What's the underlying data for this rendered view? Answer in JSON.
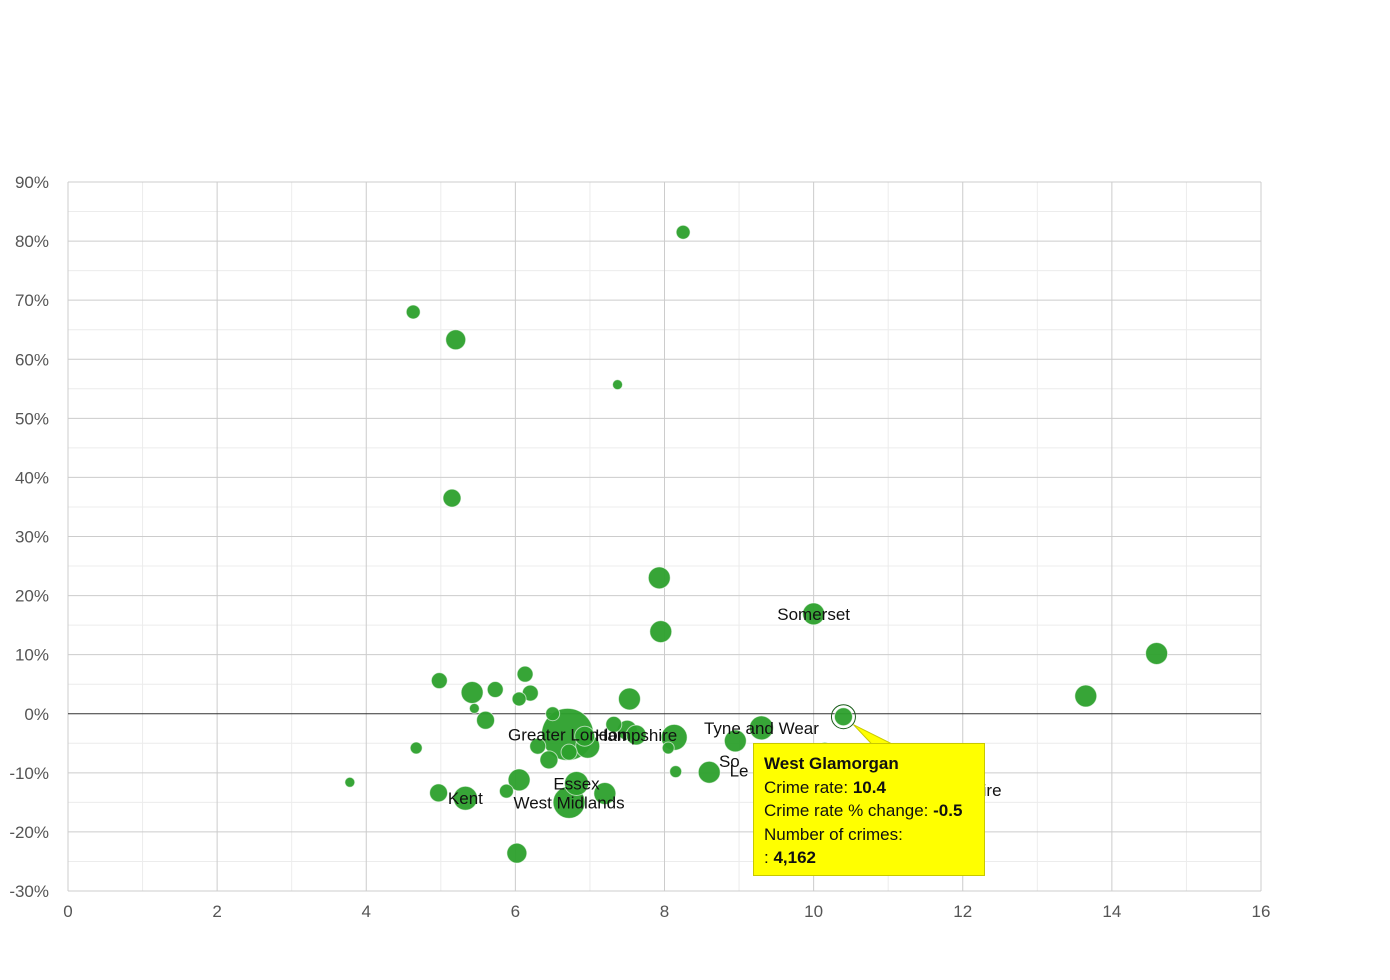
{
  "colors": {
    "bubble": "#2ca02c",
    "bubble_stroke": "#1e7a1e",
    "tooltip_bg": "#ffff00",
    "grid_major": "#cccccc",
    "grid_minor": "#ececec",
    "zero_line": "#333333"
  },
  "chart_data": {
    "type": "scatter",
    "title": "",
    "xlabel": "",
    "ylabel": "",
    "xlim": [
      0,
      16
    ],
    "ylim": [
      -30,
      90
    ],
    "x_ticks": [
      "0",
      "2",
      "4",
      "6",
      "8",
      "10",
      "12",
      "14",
      "16"
    ],
    "y_ticks": [
      "90%",
      "80%",
      "70%",
      "60%",
      "50%",
      "40%",
      "30%",
      "20%",
      "10%",
      "0%",
      "-10%",
      "-20%",
      "-30%"
    ],
    "grid": true,
    "points": [
      {
        "x": 8.25,
        "y": 81.5,
        "r": 7,
        "label": ""
      },
      {
        "x": 4.63,
        "y": 68.0,
        "r": 7,
        "label": ""
      },
      {
        "x": 5.2,
        "y": 63.3,
        "r": 10,
        "label": ""
      },
      {
        "x": 7.37,
        "y": 55.7,
        "r": 5,
        "label": ""
      },
      {
        "x": 5.15,
        "y": 36.5,
        "r": 9,
        "label": ""
      },
      {
        "x": 7.93,
        "y": 23.0,
        "r": 11,
        "label": ""
      },
      {
        "x": 7.95,
        "y": 13.9,
        "r": 11,
        "label": ""
      },
      {
        "x": 10.0,
        "y": 16.9,
        "r": 11,
        "label": "Somerset"
      },
      {
        "x": 14.6,
        "y": 10.2,
        "r": 11,
        "label": ""
      },
      {
        "x": 13.65,
        "y": 3.0,
        "r": 11,
        "label": ""
      },
      {
        "x": 4.98,
        "y": 5.6,
        "r": 8,
        "label": ""
      },
      {
        "x": 5.42,
        "y": 3.6,
        "r": 11,
        "label": ""
      },
      {
        "x": 5.73,
        "y": 4.1,
        "r": 8,
        "label": ""
      },
      {
        "x": 6.13,
        "y": 6.7,
        "r": 8,
        "label": ""
      },
      {
        "x": 6.2,
        "y": 3.5,
        "r": 8,
        "label": ""
      },
      {
        "x": 6.05,
        "y": 2.5,
        "r": 7,
        "label": ""
      },
      {
        "x": 7.53,
        "y": 2.5,
        "r": 11,
        "label": ""
      },
      {
        "x": 5.45,
        "y": 0.9,
        "r": 5,
        "label": ""
      },
      {
        "x": 5.6,
        "y": -1.1,
        "r": 9,
        "label": ""
      },
      {
        "x": 6.5,
        "y": 0.0,
        "r": 7,
        "label": ""
      },
      {
        "x": 6.7,
        "y": -3.5,
        "r": 26,
        "label": "Greater London"
      },
      {
        "x": 6.93,
        "y": -3.8,
        "r": 10,
        "label": ""
      },
      {
        "x": 6.97,
        "y": -5.5,
        "r": 12,
        "label": ""
      },
      {
        "x": 6.3,
        "y": -5.5,
        "r": 8,
        "label": ""
      },
      {
        "x": 6.45,
        "y": -7.8,
        "r": 9,
        "label": ""
      },
      {
        "x": 6.72,
        "y": -6.5,
        "r": 8,
        "label": ""
      },
      {
        "x": 7.32,
        "y": -1.8,
        "r": 8,
        "label": ""
      },
      {
        "x": 7.5,
        "y": -2.8,
        "r": 10,
        "label": ""
      },
      {
        "x": 7.62,
        "y": -3.6,
        "r": 10,
        "label": "Hampshire"
      },
      {
        "x": 8.05,
        "y": -5.8,
        "r": 6,
        "label": ""
      },
      {
        "x": 8.13,
        "y": -4.0,
        "r": 13,
        "label": ""
      },
      {
        "x": 8.95,
        "y": -4.6,
        "r": 11,
        "label": ""
      },
      {
        "x": 9.3,
        "y": -2.4,
        "r": 12,
        "label": "Tyne and Wear"
      },
      {
        "x": 10.15,
        "y": -6.2,
        "r": 8,
        "label": ""
      },
      {
        "x": 10.4,
        "y": -0.5,
        "r": 9,
        "label": ""
      },
      {
        "x": 8.6,
        "y": -9.9,
        "r": 11,
        "label": ""
      },
      {
        "x": 8.15,
        "y": -9.8,
        "r": 6,
        "label": ""
      },
      {
        "x": 4.67,
        "y": -5.8,
        "r": 6,
        "label": ""
      },
      {
        "x": 3.78,
        "y": -11.6,
        "r": 5,
        "label": ""
      },
      {
        "x": 4.97,
        "y": -13.4,
        "r": 9,
        "label": ""
      },
      {
        "x": 5.33,
        "y": -14.3,
        "r": 12,
        "label": "Kent"
      },
      {
        "x": 5.88,
        "y": -13.1,
        "r": 7,
        "label": ""
      },
      {
        "x": 6.05,
        "y": -11.2,
        "r": 11,
        "label": ""
      },
      {
        "x": 6.82,
        "y": -11.8,
        "r": 12,
        "label": "Essex"
      },
      {
        "x": 6.72,
        "y": -15.0,
        "r": 16,
        "label": "West Midlands"
      },
      {
        "x": 7.2,
        "y": -13.5,
        "r": 11,
        "label": ""
      },
      {
        "x": 6.02,
        "y": -23.6,
        "r": 10,
        "label": ""
      }
    ],
    "extra_labels": [
      {
        "text": "So",
        "x": 8.87,
        "y": -8.0
      },
      {
        "text": "Le",
        "x": 9.0,
        "y": -9.6
      },
      {
        "text": "hire",
        "x": 12.33,
        "y": -12.9
      }
    ],
    "highlight": {
      "x": 10.4,
      "y": -0.5,
      "r": 9
    },
    "tooltip": {
      "title": "West Glamorgan",
      "rate_label": "Crime rate:",
      "rate_value": "10.4",
      "change_label": "Crime rate % change:",
      "change_value": "-0.5",
      "count_label": "Number of crimes:",
      "count_prefix": ":",
      "count_value": "4,162"
    }
  }
}
